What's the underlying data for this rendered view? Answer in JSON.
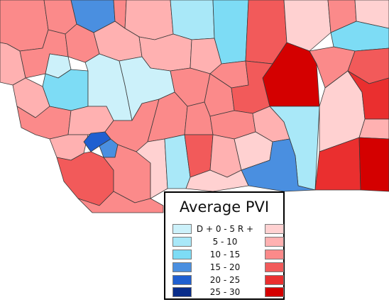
{
  "legend": {
    "title": "Average PVI",
    "rows": [
      {
        "label": "D + 0   -   5  R +",
        "dem_color": "#ccf1fa",
        "rep_color": "#ffd1d1"
      },
      {
        "label": "5  -  10",
        "dem_color": "#a9e8f8",
        "rep_color": "#ffb1b1"
      },
      {
        "label": "10  -  15",
        "dem_color": "#7ddcf5",
        "rep_color": "#fb8a8a"
      },
      {
        "label": "15  -  20",
        "dem_color": "#4a8fe0",
        "rep_color": "#f25a5a"
      },
      {
        "label": "20  -  25",
        "dem_color": "#1f5fd0",
        "rep_color": "#ea2f2f"
      },
      {
        "label": "25  -  30",
        "dem_color": "#082c8a",
        "rep_color": "#d40000"
      }
    ]
  }
}
